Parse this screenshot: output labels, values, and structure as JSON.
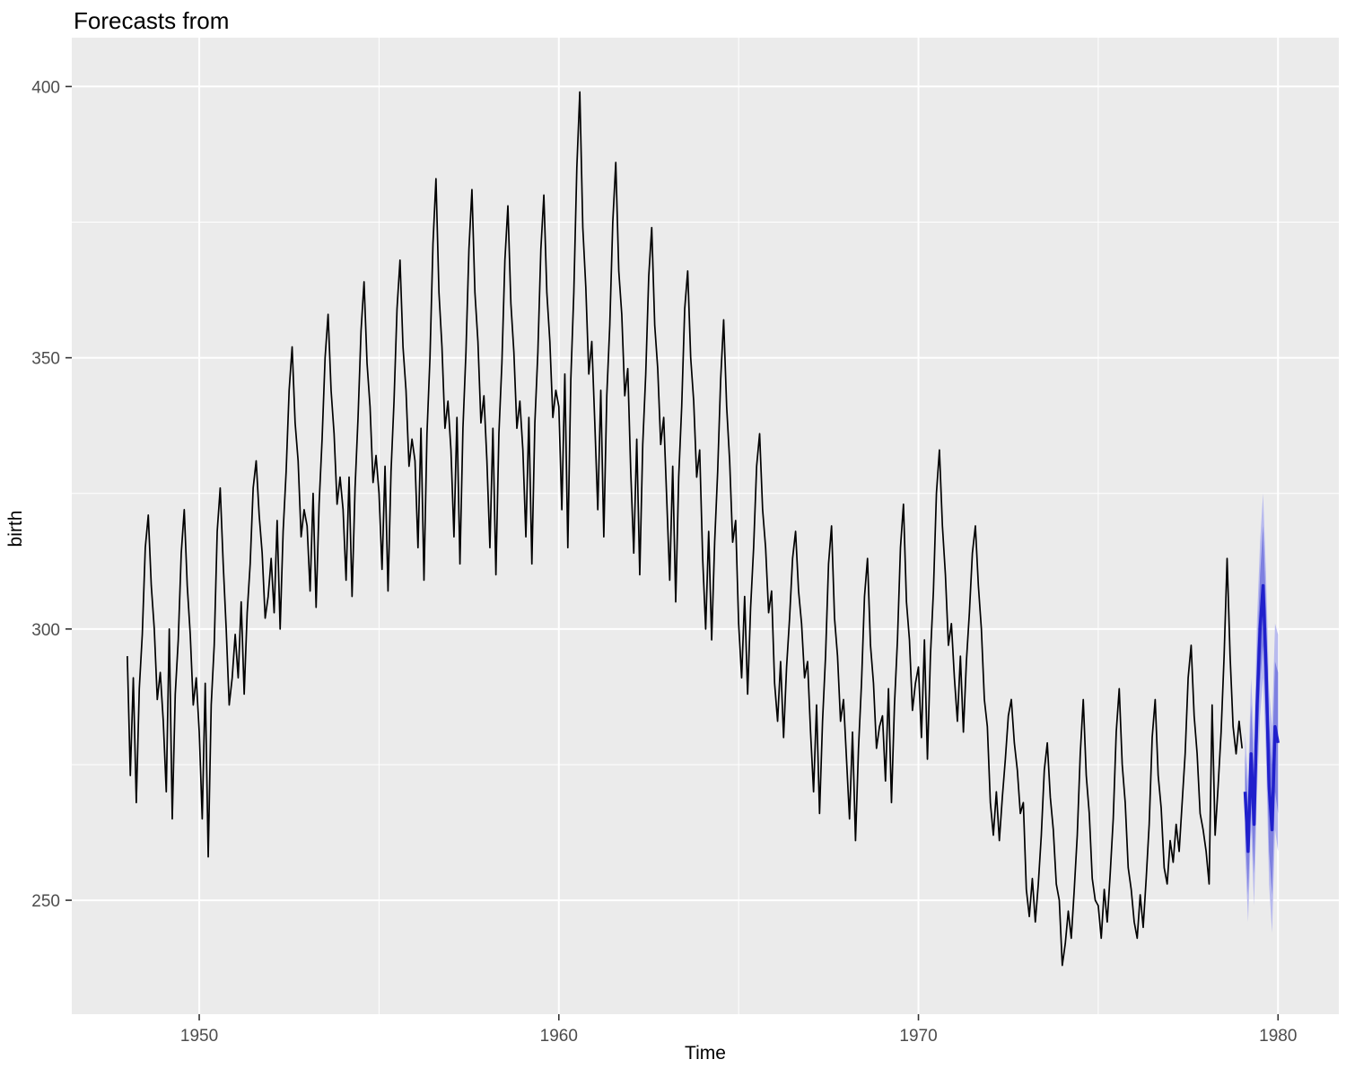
{
  "title": "Forecasts from",
  "axes": {
    "x_label": "Time",
    "y_label": "birth"
  },
  "chart_data": {
    "type": "line",
    "title": "Forecasts from",
    "xlabel": "Time",
    "ylabel": "birth",
    "x_domain": [
      1946.456,
      1981.69
    ],
    "y_domain": [
      229,
      409
    ],
    "x_ticks": [
      1950,
      1960,
      1970,
      1980
    ],
    "y_ticks": [
      250,
      300,
      350,
      400
    ],
    "x_minor_ticks": [
      1955,
      1965,
      1975
    ],
    "y_minor_ticks": [
      275,
      325,
      375
    ],
    "grid": "on",
    "legend": "none",
    "colors": {
      "panel_bg": "#EBEBEB",
      "grid": "#FFFFFF",
      "tick_text": "#4D4D4D",
      "tick_mark": "#333333",
      "series_line": "#000000",
      "forecast_mean": "#2020CC",
      "band80": "#7E80E0",
      "band95": "#B8BAEE"
    },
    "series": {
      "name": "birth",
      "start": 1948,
      "frequency": 12,
      "values": [
        295,
        273,
        291,
        268,
        289,
        299,
        315,
        321,
        308,
        300,
        287,
        292,
        283,
        270,
        300,
        265,
        288,
        298,
        314,
        322,
        308,
        299,
        286,
        291,
        281,
        265,
        290,
        258,
        286,
        297,
        318,
        326,
        312,
        300,
        286,
        291,
        299,
        291,
        305,
        288,
        303,
        312,
        326,
        331,
        321,
        314,
        302,
        306,
        313,
        303,
        320,
        300,
        318,
        329,
        344,
        352,
        338,
        331,
        317,
        322,
        319,
        307,
        325,
        304,
        323,
        335,
        350,
        358,
        344,
        336,
        323,
        328,
        322,
        309,
        328,
        306,
        326,
        339,
        355,
        364,
        349,
        341,
        327,
        332,
        325,
        311,
        330,
        307,
        329,
        342,
        359,
        368,
        352,
        344,
        330,
        335,
        331,
        315,
        337,
        309,
        336,
        350,
        371,
        383,
        362,
        352,
        337,
        342,
        333,
        317,
        339,
        312,
        337,
        351,
        370,
        381,
        362,
        353,
        338,
        343,
        331,
        315,
        337,
        310,
        336,
        349,
        368,
        378,
        360,
        351,
        337,
        342,
        333,
        317,
        339,
        312,
        338,
        351,
        370,
        380,
        362,
        353,
        339,
        344,
        341,
        322,
        347,
        315,
        346,
        362,
        385,
        399,
        374,
        363,
        347,
        353,
        338,
        322,
        344,
        317,
        343,
        356,
        375,
        386,
        366,
        358,
        343,
        348,
        329,
        314,
        335,
        310,
        334,
        347,
        365,
        374,
        356,
        348,
        334,
        339,
        324,
        309,
        330,
        305,
        328,
        341,
        359,
        366,
        350,
        342,
        328,
        333,
        313,
        300,
        318,
        298,
        316,
        329,
        346,
        357,
        341,
        331,
        316,
        320,
        301,
        291,
        306,
        288,
        304,
        315,
        330,
        336,
        322,
        315,
        303,
        307,
        290,
        283,
        294,
        280,
        293,
        302,
        313,
        318,
        307,
        301,
        291,
        294,
        281,
        270,
        286,
        266,
        283,
        295,
        312,
        319,
        302,
        295,
        283,
        287,
        276,
        265,
        281,
        261,
        278,
        290,
        306,
        313,
        297,
        290,
        278,
        282,
        284,
        272,
        289,
        268,
        286,
        298,
        315,
        323,
        305,
        298,
        285,
        290,
        293,
        280,
        298,
        276,
        295,
        307,
        325,
        333,
        319,
        310,
        297,
        301,
        291,
        283,
        295,
        281,
        294,
        303,
        314,
        319,
        308,
        300,
        287,
        282,
        268,
        262,
        270,
        261,
        269,
        276,
        284,
        287,
        279,
        274,
        266,
        268,
        252,
        247,
        254,
        246,
        253,
        262,
        274,
        279,
        269,
        263,
        253,
        250,
        238,
        242,
        248,
        243,
        252,
        262,
        277,
        287,
        273,
        266,
        254,
        250,
        249,
        243,
        252,
        246,
        255,
        265,
        281,
        289,
        275,
        268,
        256,
        252,
        246,
        243,
        251,
        245,
        254,
        264,
        280,
        287,
        273,
        267,
        256,
        253,
        261,
        257,
        264,
        259,
        268,
        277,
        291,
        297,
        284,
        277,
        266,
        263,
        259,
        253,
        286,
        262,
        271,
        281,
        295,
        313,
        295,
        282,
        277,
        283,
        278
      ]
    },
    "forecast": {
      "name": "forecast",
      "start": 1979.0833,
      "frequency": 12,
      "mean": [
        270,
        259,
        277,
        264,
        286,
        300,
        308,
        293,
        271,
        263,
        282,
        279
      ],
      "lo80": [
        263,
        251,
        268,
        255,
        276,
        290,
        297,
        282,
        259,
        251,
        270,
        266
      ],
      "hi80": [
        277,
        267,
        286,
        273,
        296,
        310,
        319,
        304,
        283,
        275,
        294,
        292
      ],
      "lo95": [
        259,
        246,
        263,
        249,
        270,
        284,
        291,
        276,
        253,
        244,
        263,
        259
      ],
      "hi95": [
        281,
        272,
        291,
        279,
        302,
        316,
        325,
        310,
        289,
        282,
        301,
        299
      ]
    }
  }
}
